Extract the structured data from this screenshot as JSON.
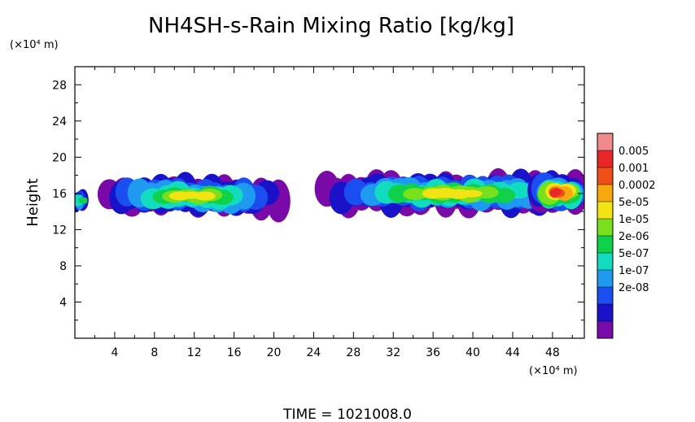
{
  "chart_data": {
    "type": "heatmap",
    "title": "NH4SH-s-Rain Mixing Ratio [kg/kg]",
    "ylabel": "Height",
    "xlabel": "",
    "x_unit": "(×10⁴ m)",
    "y_unit": "(×10⁴ m)",
    "xlim": [
      0,
      51.2
    ],
    "ylim": [
      0,
      30
    ],
    "x_ticks": [
      4,
      8,
      12,
      16,
      20,
      24,
      28,
      32,
      36,
      40,
      44,
      48
    ],
    "x_tick_labels": [
      "4",
      "8",
      "12",
      "16",
      "20",
      "24",
      "28",
      "32",
      "36",
      "40",
      "44",
      "48"
    ],
    "y_ticks": [
      4,
      8,
      12,
      16,
      20,
      24,
      28
    ],
    "y_tick_labels": [
      "4",
      "8",
      "12",
      "16",
      "20",
      "24",
      "28"
    ],
    "colorbar": {
      "labels": [
        "0.005",
        "0.001",
        "0.0002",
        "5e-05",
        "1e-05",
        "2e-06",
        "5e-07",
        "1e-07",
        "2e-08"
      ],
      "colors": [
        "#7a0aa8",
        "#1a12c8",
        "#1a4ef0",
        "#1e9af0",
        "#12dcc0",
        "#10d24a",
        "#78e01c",
        "#f2e414",
        "#f7a80e",
        "#f05018",
        "#e82828",
        "#f08a8a"
      ]
    },
    "regions": [
      {
        "x": [
          0,
          1.2
        ],
        "y": [
          13.8,
          16.6
        ],
        "peak_level": 5
      },
      {
        "x": [
          2.8,
          20.8
        ],
        "y": [
          13.2,
          18.2
        ],
        "peak_level": 7
      },
      {
        "x": [
          24.4,
          51.2
        ],
        "y": [
          13.4,
          18.6
        ],
        "peak_level": 7
      },
      {
        "x": [
          46.0,
          51.2
        ],
        "y": [
          13.6,
          18.6
        ],
        "peak_level": 10
      }
    ],
    "time_label": "TIME = 1021008.0"
  }
}
